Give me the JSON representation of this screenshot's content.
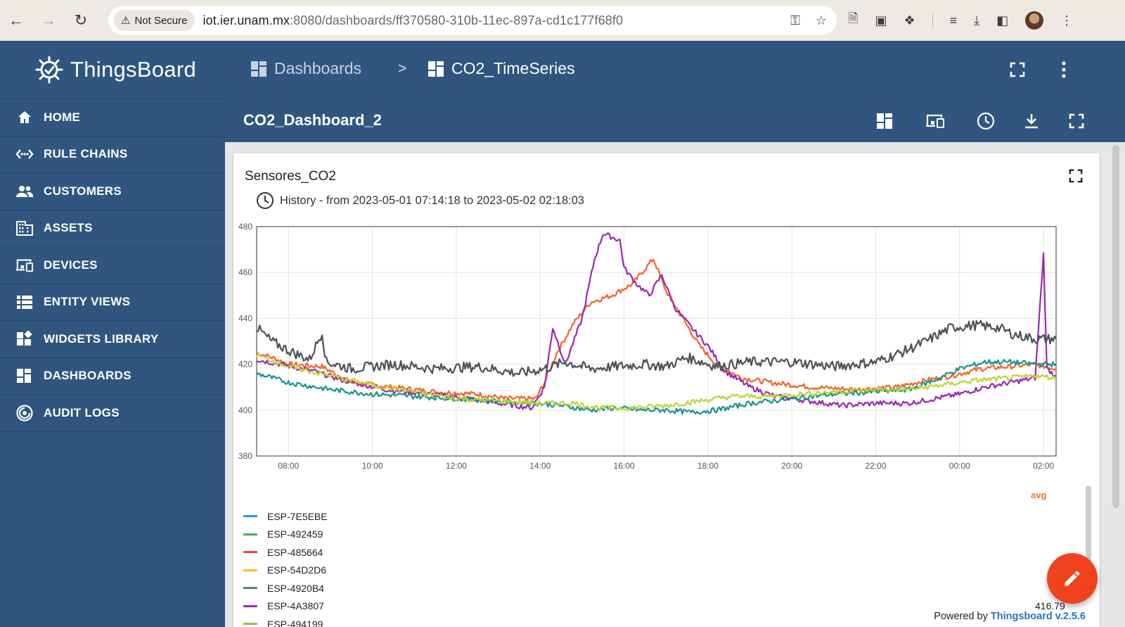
{
  "browser": {
    "security_label": "Not Secure",
    "url_host": "iot.ier.unam.mx",
    "url_rest": ":8080/dashboards/ff370580-310b-11ec-897a-cd1c177f68f0"
  },
  "sidebar": {
    "brand": "ThingsBoard",
    "items": [
      {
        "label": "HOME",
        "icon": "home-icon"
      },
      {
        "label": "RULE CHAINS",
        "icon": "rule-chains-icon"
      },
      {
        "label": "CUSTOMERS",
        "icon": "customers-icon"
      },
      {
        "label": "ASSETS",
        "icon": "assets-icon"
      },
      {
        "label": "DEVICES",
        "icon": "devices-icon"
      },
      {
        "label": "ENTITY VIEWS",
        "icon": "entity-views-icon"
      },
      {
        "label": "WIDGETS LIBRARY",
        "icon": "widgets-library-icon"
      },
      {
        "label": "DASHBOARDS",
        "icon": "dashboards-icon"
      },
      {
        "label": "AUDIT LOGS",
        "icon": "audit-logs-icon"
      }
    ]
  },
  "header": {
    "crumb_root": "Dashboards",
    "crumb_sep": ">",
    "crumb_current": "CO2_TimeSeries"
  },
  "toolbar": {
    "dashboard_title": "CO2_Dashboard_2"
  },
  "widget": {
    "title": "Sensores_CO2",
    "history": "History - from 2023-05-01 07:14:18 to 2023-05-02 02:18:03",
    "avg_header": "avg",
    "avg_value": "416.79",
    "powered_prefix": "Powered by ",
    "powered_brand": "Thingsboard v.2.5.6"
  },
  "chart_data": {
    "type": "line",
    "title": "",
    "xlabel": "",
    "ylabel": "",
    "x_ticks": [
      "08:00",
      "10:00",
      "12:00",
      "14:00",
      "16:00",
      "18:00",
      "20:00",
      "22:00",
      "00:00",
      "02:00"
    ],
    "y_ticks": [
      380,
      400,
      420,
      440,
      460,
      480
    ],
    "ylim": [
      380,
      480
    ],
    "xlim_hours": [
      7.24,
      26.3
    ],
    "grid": true,
    "legend": "bottom-left",
    "series": [
      {
        "name": "ESP-7E5EBE",
        "color": "#2196f3",
        "points": []
      },
      {
        "name": "ESP-492459",
        "color": "#4caf50",
        "points": []
      },
      {
        "name": "ESP-485664",
        "color": "#f44336",
        "points": []
      },
      {
        "name": "ESP-54D2D6",
        "color": "#ffc107",
        "points": []
      },
      {
        "name": "ESP-4920B4",
        "color": "#607d8b",
        "points": []
      },
      {
        "name": "ESP-4A3807",
        "color": "#9c27b0",
        "points": []
      },
      {
        "name": "ESP-494199",
        "color": "#8bc34a",
        "points": []
      }
    ],
    "plotted": [
      {
        "color": "#f4622b",
        "points": [
          [
            7.24,
            425
          ],
          [
            7.6,
            423
          ],
          [
            8,
            420
          ],
          [
            8.8,
            419
          ],
          [
            9.5,
            412
          ],
          [
            10.5,
            410
          ],
          [
            11.5,
            408
          ],
          [
            12.5,
            407
          ],
          [
            13.2,
            405
          ],
          [
            13.9,
            405
          ],
          [
            14.1,
            412
          ],
          [
            14.4,
            425
          ],
          [
            14.8,
            438
          ],
          [
            15.2,
            447
          ],
          [
            15.7,
            450
          ],
          [
            16.2,
            455
          ],
          [
            16.7,
            466
          ],
          [
            17,
            452
          ],
          [
            17.4,
            440
          ],
          [
            17.8,
            428
          ],
          [
            18.2,
            420
          ],
          [
            18.8,
            414
          ],
          [
            19.5,
            412
          ],
          [
            20.5,
            410
          ],
          [
            21.5,
            409
          ],
          [
            22.5,
            410
          ],
          [
            23.2,
            413
          ],
          [
            23.8,
            415
          ],
          [
            24.5,
            418
          ],
          [
            25.2,
            419
          ],
          [
            25.8,
            420
          ],
          [
            26.3,
            418
          ]
        ]
      },
      {
        "color": "#9c27b0",
        "points": [
          [
            7.24,
            422
          ],
          [
            7.8,
            420
          ],
          [
            8.6,
            417
          ],
          [
            9.3,
            413
          ],
          [
            10.3,
            409
          ],
          [
            11.3,
            407
          ],
          [
            12.3,
            405
          ],
          [
            13.0,
            403
          ],
          [
            13.8,
            401
          ],
          [
            14.1,
            410
          ],
          [
            14.3,
            436
          ],
          [
            14.6,
            420
          ],
          [
            15.0,
            440
          ],
          [
            15.3,
            466
          ],
          [
            15.5,
            477
          ],
          [
            15.9,
            474
          ],
          [
            16.0,
            462
          ],
          [
            16.3,
            455
          ],
          [
            16.6,
            450
          ],
          [
            16.9,
            459
          ],
          [
            17.2,
            445
          ],
          [
            17.6,
            436
          ],
          [
            18.0,
            428
          ],
          [
            18.4,
            417
          ],
          [
            19.0,
            410
          ],
          [
            19.6,
            406
          ],
          [
            20.4,
            404
          ],
          [
            21.2,
            402
          ],
          [
            22.0,
            403
          ],
          [
            22.8,
            403
          ],
          [
            23.4,
            405
          ],
          [
            24.0,
            407
          ],
          [
            24.6,
            410
          ],
          [
            25.2,
            412
          ],
          [
            25.8,
            414
          ],
          [
            26.0,
            468
          ],
          [
            26.08,
            418
          ],
          [
            26.3,
            415
          ]
        ]
      },
      {
        "color": "#4a5256",
        "points": [
          [
            7.24,
            436
          ],
          [
            7.6,
            430
          ],
          [
            8,
            426
          ],
          [
            8.5,
            422
          ],
          [
            8.8,
            434
          ],
          [
            8.9,
            421
          ],
          [
            9.5,
            418
          ],
          [
            10.5,
            420
          ],
          [
            11.5,
            418
          ],
          [
            12.5,
            419
          ],
          [
            13.5,
            416
          ],
          [
            14.1,
            418
          ],
          [
            14.6,
            421
          ],
          [
            15.2,
            418
          ],
          [
            15.8,
            419
          ],
          [
            16.5,
            420
          ],
          [
            17.0,
            419
          ],
          [
            17.5,
            423
          ],
          [
            18.2,
            419
          ],
          [
            19.0,
            421
          ],
          [
            20.0,
            421
          ],
          [
            21.0,
            419
          ],
          [
            22.0,
            421
          ],
          [
            22.6,
            425
          ],
          [
            23.2,
            430
          ],
          [
            23.8,
            436
          ],
          [
            24.4,
            437
          ],
          [
            24.9,
            436
          ],
          [
            25.3,
            433
          ],
          [
            25.8,
            431
          ],
          [
            26.3,
            431
          ]
        ]
      },
      {
        "color": "#16948a",
        "points": [
          [
            7.24,
            416
          ],
          [
            8,
            412
          ],
          [
            9,
            409
          ],
          [
            10,
            407
          ],
          [
            11,
            406
          ],
          [
            12,
            405
          ],
          [
            13,
            404
          ],
          [
            13.9,
            403
          ],
          [
            14.5,
            402
          ],
          [
            15.2,
            400
          ],
          [
            15.8,
            401
          ],
          [
            16.4,
            400
          ],
          [
            17,
            400
          ],
          [
            17.6,
            399
          ],
          [
            18.2,
            400
          ],
          [
            19,
            403
          ],
          [
            20,
            405
          ],
          [
            21,
            407
          ],
          [
            22,
            408
          ],
          [
            22.8,
            409
          ],
          [
            23.4,
            413
          ],
          [
            24.0,
            418
          ],
          [
            24.6,
            421
          ],
          [
            25.2,
            421
          ],
          [
            25.8,
            420
          ],
          [
            26.3,
            420
          ]
        ]
      },
      {
        "color": "#c0d339",
        "points": [
          [
            7.24,
            424
          ],
          [
            8,
            419
          ],
          [
            9,
            415
          ],
          [
            10,
            411
          ],
          [
            11,
            408
          ],
          [
            12,
            405
          ],
          [
            13,
            404
          ],
          [
            14,
            403
          ],
          [
            14.8,
            403
          ],
          [
            15.4,
            401
          ],
          [
            16.2,
            401
          ],
          [
            17,
            402
          ],
          [
            17.8,
            404
          ],
          [
            18.6,
            406
          ],
          [
            19.4,
            406
          ],
          [
            20.2,
            407
          ],
          [
            21.0,
            408
          ],
          [
            22.0,
            409
          ],
          [
            22.8,
            409
          ],
          [
            23.6,
            411
          ],
          [
            24.4,
            413
          ],
          [
            25.2,
            414
          ],
          [
            25.8,
            415
          ],
          [
            26.3,
            414
          ]
        ]
      }
    ]
  }
}
